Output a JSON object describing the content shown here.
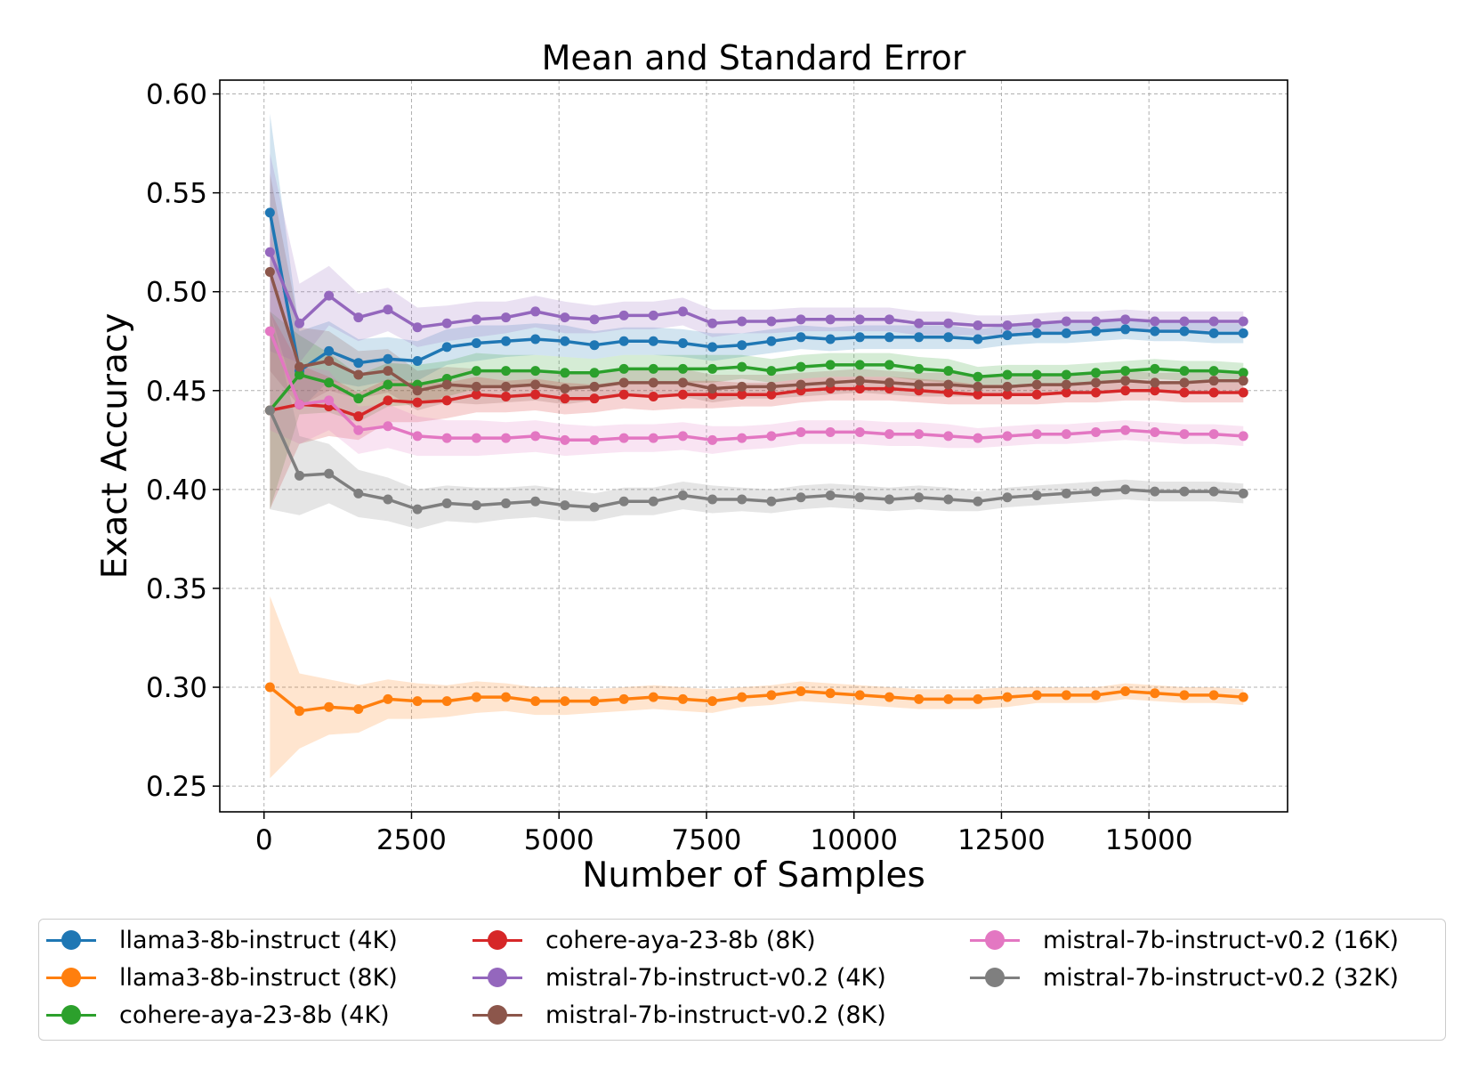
{
  "chart_data": {
    "type": "line",
    "title": "Mean and Standard Error",
    "xlabel": "Number of Samples",
    "ylabel": "Exact Accuracy",
    "xlim": [
      -750,
      17350
    ],
    "ylim": [
      0.237,
      0.607
    ],
    "xticks": [
      0,
      2500,
      5000,
      7500,
      10000,
      12500,
      15000
    ],
    "yticks": [
      0.25,
      0.3,
      0.35,
      0.4,
      0.45,
      0.5,
      0.55,
      0.6
    ],
    "grid": true,
    "legend_position": "below",
    "x": [
      100,
      600,
      1100,
      1600,
      2100,
      2600,
      3100,
      3600,
      4100,
      4600,
      5100,
      5600,
      6100,
      6600,
      7100,
      7600,
      8100,
      8600,
      9100,
      9600,
      10100,
      10600,
      11100,
      11600,
      12100,
      12600,
      13100,
      13600,
      14100,
      14600,
      15100,
      15600,
      16100,
      16600
    ],
    "series": [
      {
        "name": "llama3-8b-instruct (4K)",
        "color": "#1f77b4",
        "values": [
          0.54,
          0.46,
          0.47,
          0.464,
          0.466,
          0.465,
          0.472,
          0.474,
          0.475,
          0.476,
          0.475,
          0.473,
          0.475,
          0.475,
          0.474,
          0.472,
          0.473,
          0.475,
          0.477,
          0.476,
          0.477,
          0.477,
          0.477,
          0.477,
          0.476,
          0.478,
          0.479,
          0.479,
          0.48,
          0.481,
          0.48,
          0.48,
          0.479,
          0.479
        ],
        "stderr": [
          0.05,
          0.02,
          0.015,
          0.012,
          0.011,
          0.01,
          0.009,
          0.009,
          0.008,
          0.008,
          0.008,
          0.007,
          0.007,
          0.007,
          0.007,
          0.007,
          0.006,
          0.006,
          0.006,
          0.006,
          0.006,
          0.006,
          0.006,
          0.006,
          0.005,
          0.005,
          0.005,
          0.005,
          0.005,
          0.005,
          0.005,
          0.005,
          0.005,
          0.005
        ]
      },
      {
        "name": "llama3-8b-instruct (8K)",
        "color": "#ff7f0e",
        "values": [
          0.3,
          0.288,
          0.29,
          0.289,
          0.294,
          0.293,
          0.293,
          0.295,
          0.295,
          0.293,
          0.293,
          0.293,
          0.294,
          0.295,
          0.294,
          0.293,
          0.295,
          0.296,
          0.298,
          0.297,
          0.296,
          0.295,
          0.294,
          0.294,
          0.294,
          0.295,
          0.296,
          0.296,
          0.296,
          0.298,
          0.297,
          0.296,
          0.296,
          0.295
        ],
        "stderr": [
          0.046,
          0.019,
          0.014,
          0.012,
          0.01,
          0.009,
          0.008,
          0.008,
          0.007,
          0.007,
          0.007,
          0.006,
          0.006,
          0.006,
          0.006,
          0.006,
          0.005,
          0.005,
          0.005,
          0.005,
          0.005,
          0.005,
          0.005,
          0.005,
          0.005,
          0.005,
          0.004,
          0.004,
          0.004,
          0.004,
          0.004,
          0.004,
          0.004,
          0.004
        ]
      },
      {
        "name": "cohere-aya-23-8b (4K)",
        "color": "#2ca02c",
        "values": [
          0.44,
          0.458,
          0.454,
          0.446,
          0.453,
          0.453,
          0.456,
          0.46,
          0.46,
          0.46,
          0.459,
          0.459,
          0.461,
          0.461,
          0.461,
          0.461,
          0.462,
          0.46,
          0.462,
          0.463,
          0.463,
          0.463,
          0.461,
          0.46,
          0.457,
          0.458,
          0.458,
          0.458,
          0.459,
          0.46,
          0.461,
          0.46,
          0.46,
          0.459
        ],
        "stderr": [
          0.05,
          0.02,
          0.015,
          0.012,
          0.011,
          0.01,
          0.009,
          0.009,
          0.008,
          0.008,
          0.008,
          0.007,
          0.007,
          0.007,
          0.007,
          0.007,
          0.006,
          0.006,
          0.006,
          0.006,
          0.006,
          0.006,
          0.006,
          0.006,
          0.005,
          0.005,
          0.005,
          0.005,
          0.005,
          0.005,
          0.005,
          0.005,
          0.005,
          0.005
        ]
      },
      {
        "name": "cohere-aya-23-8b (8K)",
        "color": "#d62728",
        "values": [
          0.44,
          0.443,
          0.442,
          0.437,
          0.445,
          0.444,
          0.445,
          0.448,
          0.447,
          0.448,
          0.446,
          0.446,
          0.448,
          0.447,
          0.448,
          0.448,
          0.448,
          0.448,
          0.45,
          0.451,
          0.451,
          0.451,
          0.45,
          0.449,
          0.448,
          0.448,
          0.448,
          0.449,
          0.449,
          0.45,
          0.45,
          0.449,
          0.449,
          0.449
        ],
        "stderr": [
          0.05,
          0.02,
          0.015,
          0.012,
          0.011,
          0.01,
          0.009,
          0.009,
          0.008,
          0.008,
          0.008,
          0.007,
          0.007,
          0.007,
          0.007,
          0.007,
          0.006,
          0.006,
          0.006,
          0.006,
          0.006,
          0.006,
          0.006,
          0.006,
          0.005,
          0.005,
          0.005,
          0.005,
          0.005,
          0.005,
          0.005,
          0.005,
          0.005,
          0.005
        ]
      },
      {
        "name": "mistral-7b-instruct-v0.2 (4K)",
        "color": "#9467bd",
        "values": [
          0.52,
          0.484,
          0.498,
          0.487,
          0.491,
          0.482,
          0.484,
          0.486,
          0.487,
          0.49,
          0.487,
          0.486,
          0.488,
          0.488,
          0.49,
          0.484,
          0.485,
          0.485,
          0.486,
          0.486,
          0.486,
          0.486,
          0.484,
          0.484,
          0.483,
          0.483,
          0.484,
          0.485,
          0.485,
          0.486,
          0.485,
          0.485,
          0.485,
          0.485
        ],
        "stderr": [
          0.05,
          0.02,
          0.015,
          0.012,
          0.011,
          0.01,
          0.009,
          0.009,
          0.008,
          0.008,
          0.008,
          0.007,
          0.007,
          0.007,
          0.007,
          0.007,
          0.006,
          0.006,
          0.006,
          0.006,
          0.006,
          0.006,
          0.006,
          0.006,
          0.005,
          0.005,
          0.005,
          0.005,
          0.005,
          0.005,
          0.005,
          0.005,
          0.005,
          0.005
        ]
      },
      {
        "name": "mistral-7b-instruct-v0.2 (8K)",
        "color": "#8c564b",
        "values": [
          0.51,
          0.462,
          0.465,
          0.458,
          0.46,
          0.45,
          0.453,
          0.452,
          0.452,
          0.453,
          0.451,
          0.452,
          0.454,
          0.454,
          0.454,
          0.451,
          0.452,
          0.452,
          0.453,
          0.454,
          0.455,
          0.454,
          0.453,
          0.453,
          0.452,
          0.452,
          0.453,
          0.453,
          0.454,
          0.455,
          0.454,
          0.454,
          0.455,
          0.455
        ],
        "stderr": [
          0.05,
          0.02,
          0.015,
          0.012,
          0.011,
          0.01,
          0.009,
          0.009,
          0.008,
          0.008,
          0.008,
          0.007,
          0.007,
          0.007,
          0.007,
          0.007,
          0.006,
          0.006,
          0.006,
          0.006,
          0.006,
          0.006,
          0.006,
          0.006,
          0.005,
          0.005,
          0.005,
          0.005,
          0.005,
          0.005,
          0.005,
          0.005,
          0.005,
          0.005
        ]
      },
      {
        "name": "mistral-7b-instruct-v0.2 (16K)",
        "color": "#e377c2",
        "values": [
          0.48,
          0.443,
          0.445,
          0.43,
          0.432,
          0.427,
          0.426,
          0.426,
          0.426,
          0.427,
          0.425,
          0.425,
          0.426,
          0.426,
          0.427,
          0.425,
          0.426,
          0.427,
          0.429,
          0.429,
          0.429,
          0.428,
          0.428,
          0.427,
          0.426,
          0.427,
          0.428,
          0.428,
          0.429,
          0.43,
          0.429,
          0.428,
          0.428,
          0.427
        ],
        "stderr": [
          0.05,
          0.02,
          0.015,
          0.012,
          0.011,
          0.01,
          0.009,
          0.009,
          0.008,
          0.008,
          0.008,
          0.007,
          0.007,
          0.007,
          0.007,
          0.007,
          0.006,
          0.006,
          0.006,
          0.006,
          0.006,
          0.006,
          0.006,
          0.006,
          0.005,
          0.005,
          0.005,
          0.005,
          0.005,
          0.005,
          0.005,
          0.005,
          0.005,
          0.005
        ]
      },
      {
        "name": "mistral-7b-instruct-v0.2 (32K)",
        "color": "#7f7f7f",
        "values": [
          0.44,
          0.407,
          0.408,
          0.398,
          0.395,
          0.39,
          0.393,
          0.392,
          0.393,
          0.394,
          0.392,
          0.391,
          0.394,
          0.394,
          0.397,
          0.395,
          0.395,
          0.394,
          0.396,
          0.397,
          0.396,
          0.395,
          0.396,
          0.395,
          0.394,
          0.396,
          0.397,
          0.398,
          0.399,
          0.4,
          0.399,
          0.399,
          0.399,
          0.398
        ],
        "stderr": [
          0.05,
          0.02,
          0.015,
          0.012,
          0.011,
          0.01,
          0.009,
          0.009,
          0.008,
          0.008,
          0.008,
          0.007,
          0.007,
          0.007,
          0.007,
          0.007,
          0.006,
          0.006,
          0.006,
          0.006,
          0.006,
          0.006,
          0.006,
          0.006,
          0.005,
          0.005,
          0.005,
          0.005,
          0.005,
          0.005,
          0.005,
          0.005,
          0.005,
          0.005
        ]
      }
    ]
  }
}
